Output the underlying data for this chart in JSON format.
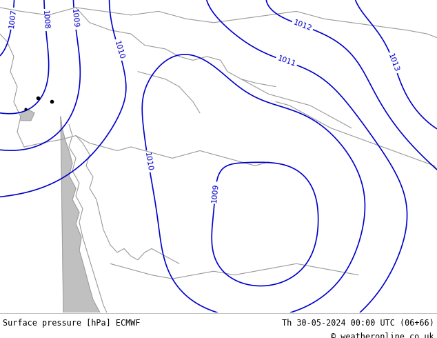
{
  "bg_color": "#b0e070",
  "contour_color": "#0000cc",
  "border_color": "#999999",
  "water_color": "#c0c0c0",
  "footer_left": "Surface pressure [hPa] ECMWF",
  "footer_right": "Th 30-05-2024 00:00 UTC (06+66)",
  "footer_copy": "© weatheronline.co.uk",
  "footer_color": "#000000",
  "fig_width": 6.34,
  "fig_height": 4.9,
  "dpi": 100
}
